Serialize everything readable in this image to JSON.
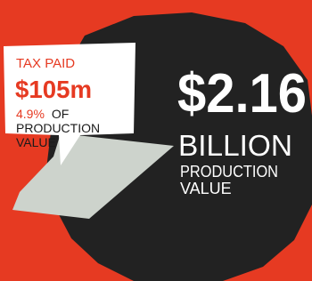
{
  "tax_callout": {
    "label": "TAX PAID",
    "amount": "$105m",
    "share": "4.9%",
    "share_suffix": "OF",
    "line1": "PRODUCTION",
    "line2": "VALUE"
  },
  "total": {
    "amount": "$2.16",
    "unit": "BILLION",
    "line1": "PRODUCTION",
    "line2": "VALUE"
  }
}
